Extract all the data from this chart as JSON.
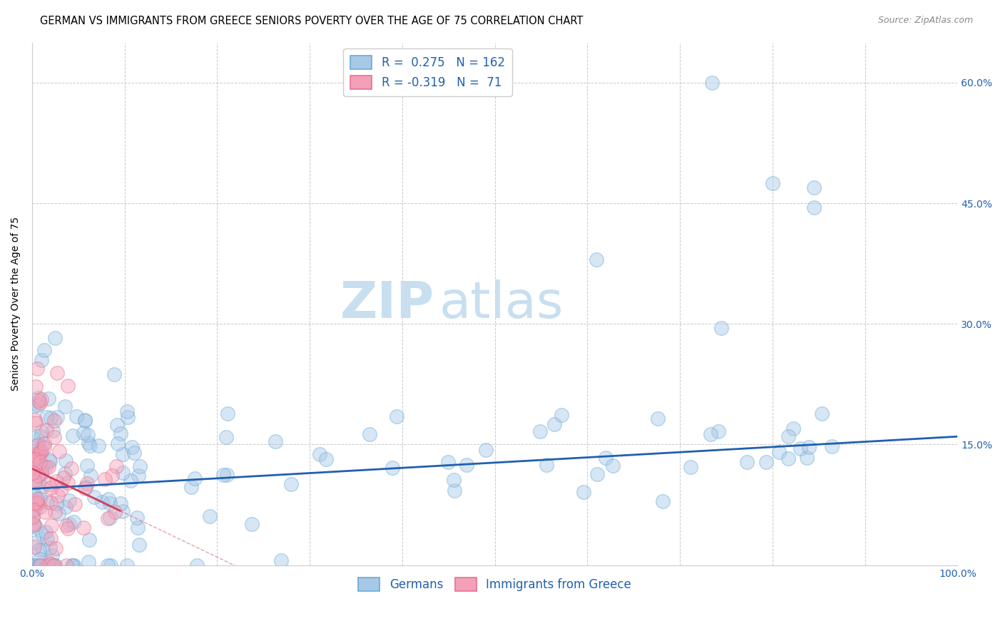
{
  "title": "GERMAN VS IMMIGRANTS FROM GREECE SENIORS POVERTY OVER THE AGE OF 75 CORRELATION CHART",
  "source": "Source: ZipAtlas.com",
  "ylabel": "Seniors Poverty Over the Age of 75",
  "xlabel": "",
  "xlim": [
    0.0,
    1.0
  ],
  "ylim": [
    0.0,
    0.65
  ],
  "xticks": [
    0.0,
    0.1,
    0.2,
    0.3,
    0.4,
    0.5,
    0.6,
    0.7,
    0.8,
    0.9,
    1.0
  ],
  "xticklabels": [
    "0.0%",
    "",
    "",
    "",
    "",
    "",
    "",
    "",
    "",
    "",
    "100.0%"
  ],
  "yticks": [
    0.0,
    0.15,
    0.3,
    0.45,
    0.6
  ],
  "yticklabels": [
    "",
    "15.0%",
    "30.0%",
    "45.0%",
    "60.0%"
  ],
  "blue_color": "#a8c8e8",
  "blue_edge_color": "#6aaad4",
  "pink_color": "#f4a0b8",
  "pink_edge_color": "#e87090",
  "blue_line_color": "#2060b0",
  "pink_line_color": "#d04060",
  "watermark_zip": "ZIP",
  "watermark_atlas": "atlas",
  "legend_blue_label_r": "R =  0.275",
  "legend_blue_label_n": "N = 162",
  "legend_pink_label_r": "R = -0.319",
  "legend_pink_label_n": "N =  71",
  "R_blue": 0.275,
  "N_blue": 162,
  "R_pink": -0.319,
  "N_pink": 71,
  "blue_intercept": 0.095,
  "blue_slope": 0.065,
  "pink_intercept": 0.12,
  "pink_slope": -0.55,
  "background_color": "#ffffff",
  "grid_color": "#bbbbbb",
  "title_fontsize": 10.5,
  "axis_label_fontsize": 10,
  "tick_fontsize": 10,
  "legend_fontsize": 12,
  "watermark_fontsize_zip": 52,
  "watermark_fontsize_atlas": 52,
  "watermark_color_zip": "#c8dff0",
  "watermark_color_atlas": "#c8dff0",
  "source_fontsize": 9,
  "point_size": 200,
  "point_alpha": 0.45
}
